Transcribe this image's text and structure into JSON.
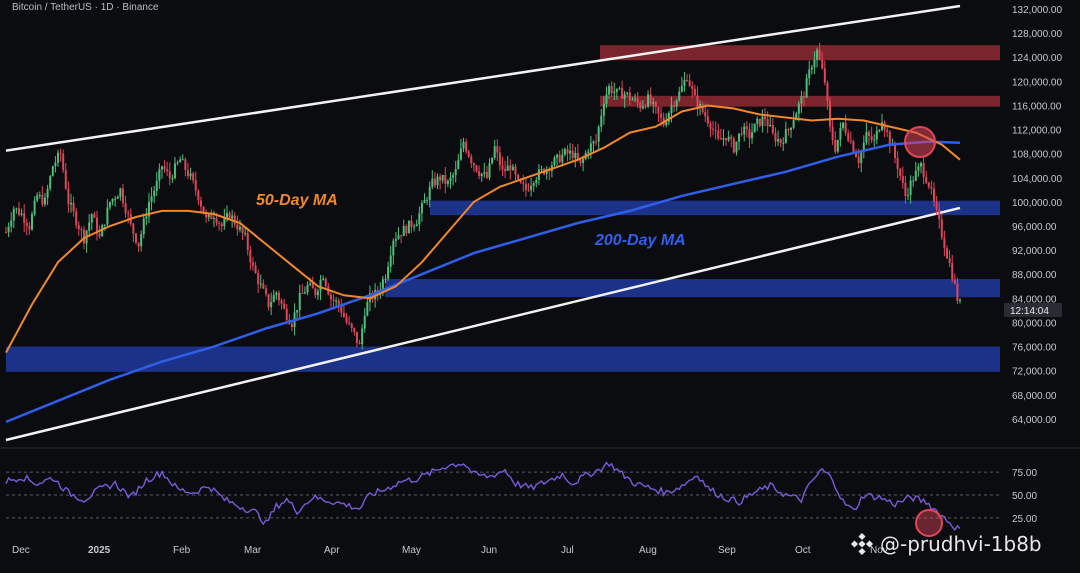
{
  "header": {
    "title": "Bitcoin / TetherUS · 1D · Binance"
  },
  "watermark": {
    "text": "@-prudhvi-1b8b",
    "icon": "binance-icon"
  },
  "colors": {
    "background": "#0b0c10",
    "up": "#4cbf7a",
    "down": "#e0455a",
    "ma50": "#f0882a",
    "ma200": "#2f5fe8",
    "rsi": "#7a5ad8",
    "resistance_zone": "#8e2a33",
    "support_zone": "#1f3a9e",
    "channel": "#f2f2f2",
    "highlight_circle": "#e0455a"
  },
  "chart_data": {
    "type": "candlestick",
    "title": "Bitcoin / TetherUS · 1D · Binance",
    "y_ticks": [
      "132,000.00",
      "128,000.00",
      "124,000.00",
      "120,000.00",
      "116,000.00",
      "112,000.00",
      "108,000.00",
      "104,000.00",
      "100,000.00",
      "96,000.00",
      "92,000.00",
      "88,000.00",
      "84,000.00",
      "80,000.00",
      "76,000.00",
      "72,000.00",
      "68,000.00",
      "64,000.00"
    ],
    "ylim": [
      60000,
      133000
    ],
    "x_ticks": [
      "Dec",
      "2025",
      "Feb",
      "Mar",
      "Apr",
      "May",
      "Jun",
      "Jul",
      "Aug",
      "Sep",
      "Oct",
      "Nov"
    ],
    "current_price_label": "12:14:04",
    "annotations": [
      {
        "text": "50-Day MA",
        "color": "#f0882a"
      },
      {
        "text": "200-Day MA",
        "color": "#2f5fe8"
      }
    ],
    "zones": [
      {
        "kind": "resistance",
        "from": 123500,
        "to": 126000
      },
      {
        "kind": "resistance",
        "from": 115800,
        "to": 117600
      },
      {
        "kind": "support",
        "from": 97800,
        "to": 100200
      },
      {
        "kind": "support",
        "from": 84200,
        "to": 87200
      },
      {
        "kind": "support",
        "from": 71800,
        "to": 76000
      }
    ],
    "channel_lines": [
      {
        "name": "upper",
        "from": [
          "Dec",
          108500
        ],
        "to": [
          "Nov",
          132500
        ]
      },
      {
        "name": "lower",
        "from": [
          "Dec",
          60500
        ],
        "to": [
          "Nov",
          99000
        ]
      }
    ],
    "price_path": [
      [
        0,
        95000
      ],
      [
        3,
        99000
      ],
      [
        6,
        98000
      ],
      [
        9,
        96000
      ],
      [
        12,
        101000
      ],
      [
        15,
        100000
      ],
      [
        18,
        106000
      ],
      [
        21,
        108000
      ],
      [
        24,
        100000
      ],
      [
        27,
        97000
      ],
      [
        30,
        94000
      ],
      [
        33,
        98000
      ],
      [
        36,
        94000
      ],
      [
        40,
        100000
      ],
      [
        44,
        102000
      ],
      [
        48,
        96000
      ],
      [
        51,
        93000
      ],
      [
        55,
        100000
      ],
      [
        58,
        103000
      ],
      [
        60,
        106000
      ],
      [
        63,
        104000
      ],
      [
        67,
        107000
      ],
      [
        71,
        104000
      ],
      [
        74,
        101000
      ],
      [
        77,
        97000
      ],
      [
        80,
        98000
      ],
      [
        83,
        96000
      ],
      [
        86,
        98000
      ],
      [
        89,
        96000
      ],
      [
        92,
        94000
      ],
      [
        95,
        89000
      ],
      [
        98,
        86000
      ],
      [
        101,
        83000
      ],
      [
        104,
        85000
      ],
      [
        107,
        82000
      ],
      [
        110,
        80000
      ],
      [
        113,
        84000
      ],
      [
        116,
        86000
      ],
      [
        119,
        85000
      ],
      [
        122,
        88000
      ],
      [
        125,
        84000
      ],
      [
        128,
        83000
      ],
      [
        131,
        80000
      ],
      [
        134,
        78000
      ],
      [
        136,
        76000
      ],
      [
        138,
        82000
      ],
      [
        140,
        84000
      ],
      [
        143,
        85000
      ],
      [
        146,
        88000
      ],
      [
        149,
        94000
      ],
      [
        152,
        95000
      ],
      [
        155,
        96000
      ],
      [
        158,
        97000
      ],
      [
        161,
        100000
      ],
      [
        164,
        103000
      ],
      [
        167,
        104000
      ],
      [
        170,
        103000
      ],
      [
        173,
        105000
      ],
      [
        176,
        110000
      ],
      [
        179,
        107000
      ],
      [
        182,
        105000
      ],
      [
        185,
        104000
      ],
      [
        188,
        109000
      ],
      [
        191,
        105000
      ],
      [
        194,
        106000
      ],
      [
        197,
        103000
      ],
      [
        200,
        102000
      ],
      [
        203,
        104000
      ],
      [
        206,
        105000
      ],
      [
        209,
        106000
      ],
      [
        212,
        107000
      ],
      [
        215,
        108000
      ],
      [
        218,
        108000
      ],
      [
        221,
        106000
      ],
      [
        224,
        109000
      ],
      [
        227,
        110000
      ],
      [
        230,
        117000
      ],
      [
        232,
        119000
      ],
      [
        235,
        118000
      ],
      [
        238,
        118000
      ],
      [
        241,
        117000
      ],
      [
        244,
        116000
      ],
      [
        247,
        117000
      ],
      [
        250,
        115000
      ],
      [
        253,
        113000
      ],
      [
        256,
        116000
      ],
      [
        259,
        118000
      ],
      [
        262,
        121000
      ],
      [
        265,
        117000
      ],
      [
        268,
        115000
      ],
      [
        271,
        113000
      ],
      [
        274,
        110000
      ],
      [
        277,
        111000
      ],
      [
        280,
        109000
      ],
      [
        283,
        112000
      ],
      [
        286,
        111000
      ],
      [
        289,
        113000
      ],
      [
        292,
        114000
      ],
      [
        295,
        111000
      ],
      [
        298,
        110000
      ],
      [
        301,
        112000
      ],
      [
        304,
        115000
      ],
      [
        307,
        118000
      ],
      [
        310,
        123000
      ],
      [
        312,
        125000
      ],
      [
        315,
        120000
      ],
      [
        317,
        112000
      ],
      [
        319,
        109000
      ],
      [
        322,
        113000
      ],
      [
        325,
        110000
      ],
      [
        328,
        107000
      ],
      [
        331,
        111000
      ],
      [
        334,
        110000
      ],
      [
        337,
        114000
      ],
      [
        340,
        110000
      ],
      [
        343,
        106000
      ],
      [
        346,
        101000
      ],
      [
        349,
        104000
      ],
      [
        352,
        106000
      ],
      [
        355,
        103000
      ],
      [
        358,
        98000
      ],
      [
        361,
        93000
      ],
      [
        364,
        88000
      ],
      [
        366,
        84000
      ],
      [
        367,
        83000
      ]
    ],
    "ma50_path": [
      [
        0,
        75000
      ],
      [
        10,
        83000
      ],
      [
        20,
        90000
      ],
      [
        30,
        94000
      ],
      [
        40,
        96000
      ],
      [
        50,
        97500
      ],
      [
        60,
        98500
      ],
      [
        70,
        98500
      ],
      [
        80,
        98000
      ],
      [
        90,
        96500
      ],
      [
        100,
        93000
      ],
      [
        110,
        89500
      ],
      [
        120,
        86000
      ],
      [
        130,
        84500
      ],
      [
        140,
        84000
      ],
      [
        150,
        86000
      ],
      [
        160,
        90000
      ],
      [
        170,
        95000
      ],
      [
        180,
        100000
      ],
      [
        190,
        102500
      ],
      [
        200,
        104000
      ],
      [
        210,
        105500
      ],
      [
        220,
        107000
      ],
      [
        230,
        109000
      ],
      [
        240,
        111500
      ],
      [
        250,
        112500
      ],
      [
        260,
        115000
      ],
      [
        270,
        116000
      ],
      [
        280,
        115500
      ],
      [
        290,
        114500
      ],
      [
        300,
        114000
      ],
      [
        310,
        113500
      ],
      [
        320,
        113800
      ],
      [
        330,
        113500
      ],
      [
        340,
        112500
      ],
      [
        350,
        111500
      ],
      [
        360,
        109500
      ],
      [
        367,
        107000
      ]
    ],
    "ma200_path": [
      [
        0,
        63500
      ],
      [
        20,
        67000
      ],
      [
        40,
        70500
      ],
      [
        60,
        73500
      ],
      [
        80,
        76000
      ],
      [
        100,
        79000
      ],
      [
        120,
        81500
      ],
      [
        140,
        84500
      ],
      [
        160,
        88000
      ],
      [
        180,
        91500
      ],
      [
        200,
        94000
      ],
      [
        220,
        96500
      ],
      [
        240,
        98500
      ],
      [
        260,
        101000
      ],
      [
        280,
        103000
      ],
      [
        300,
        105000
      ],
      [
        320,
        107500
      ],
      [
        340,
        109500
      ],
      [
        355,
        110000
      ],
      [
        367,
        109800
      ]
    ],
    "rsi": {
      "ticks": [
        "75.00",
        "50.00",
        "25.00"
      ],
      "levels": [
        70,
        50,
        30
      ],
      "ylim": [
        15,
        85
      ],
      "path": [
        [
          0,
          62
        ],
        [
          6,
          66
        ],
        [
          12,
          60
        ],
        [
          18,
          65
        ],
        [
          24,
          52
        ],
        [
          30,
          46
        ],
        [
          36,
          55
        ],
        [
          42,
          60
        ],
        [
          48,
          48
        ],
        [
          54,
          63
        ],
        [
          60,
          70
        ],
        [
          66,
          55
        ],
        [
          72,
          52
        ],
        [
          78,
          58
        ],
        [
          84,
          46
        ],
        [
          90,
          40
        ],
        [
          96,
          35
        ],
        [
          100,
          25
        ],
        [
          104,
          40
        ],
        [
          108,
          46
        ],
        [
          112,
          36
        ],
        [
          118,
          48
        ],
        [
          124,
          45
        ],
        [
          130,
          42
        ],
        [
          136,
          38
        ],
        [
          140,
          50
        ],
        [
          146,
          55
        ],
        [
          152,
          62
        ],
        [
          158,
          64
        ],
        [
          164,
          70
        ],
        [
          170,
          76
        ],
        [
          176,
          78
        ],
        [
          180,
          68
        ],
        [
          186,
          66
        ],
        [
          192,
          72
        ],
        [
          196,
          60
        ],
        [
          202,
          56
        ],
        [
          208,
          62
        ],
        [
          214,
          68
        ],
        [
          218,
          60
        ],
        [
          222,
          66
        ],
        [
          228,
          72
        ],
        [
          232,
          78
        ],
        [
          236,
          70
        ],
        [
          242,
          60
        ],
        [
          248,
          56
        ],
        [
          254,
          52
        ],
        [
          260,
          58
        ],
        [
          266,
          68
        ],
        [
          270,
          56
        ],
        [
          276,
          48
        ],
        [
          282,
          44
        ],
        [
          288,
          52
        ],
        [
          294,
          58
        ],
        [
          300,
          50
        ],
        [
          306,
          46
        ],
        [
          310,
          62
        ],
        [
          314,
          72
        ],
        [
          318,
          64
        ],
        [
          322,
          44
        ],
        [
          326,
          36
        ],
        [
          330,
          50
        ],
        [
          336,
          48
        ],
        [
          342,
          42
        ],
        [
          348,
          48
        ],
        [
          354,
          44
        ],
        [
          358,
          36
        ],
        [
          362,
          28
        ],
        [
          365,
          22
        ],
        [
          367,
          20
        ]
      ]
    }
  }
}
